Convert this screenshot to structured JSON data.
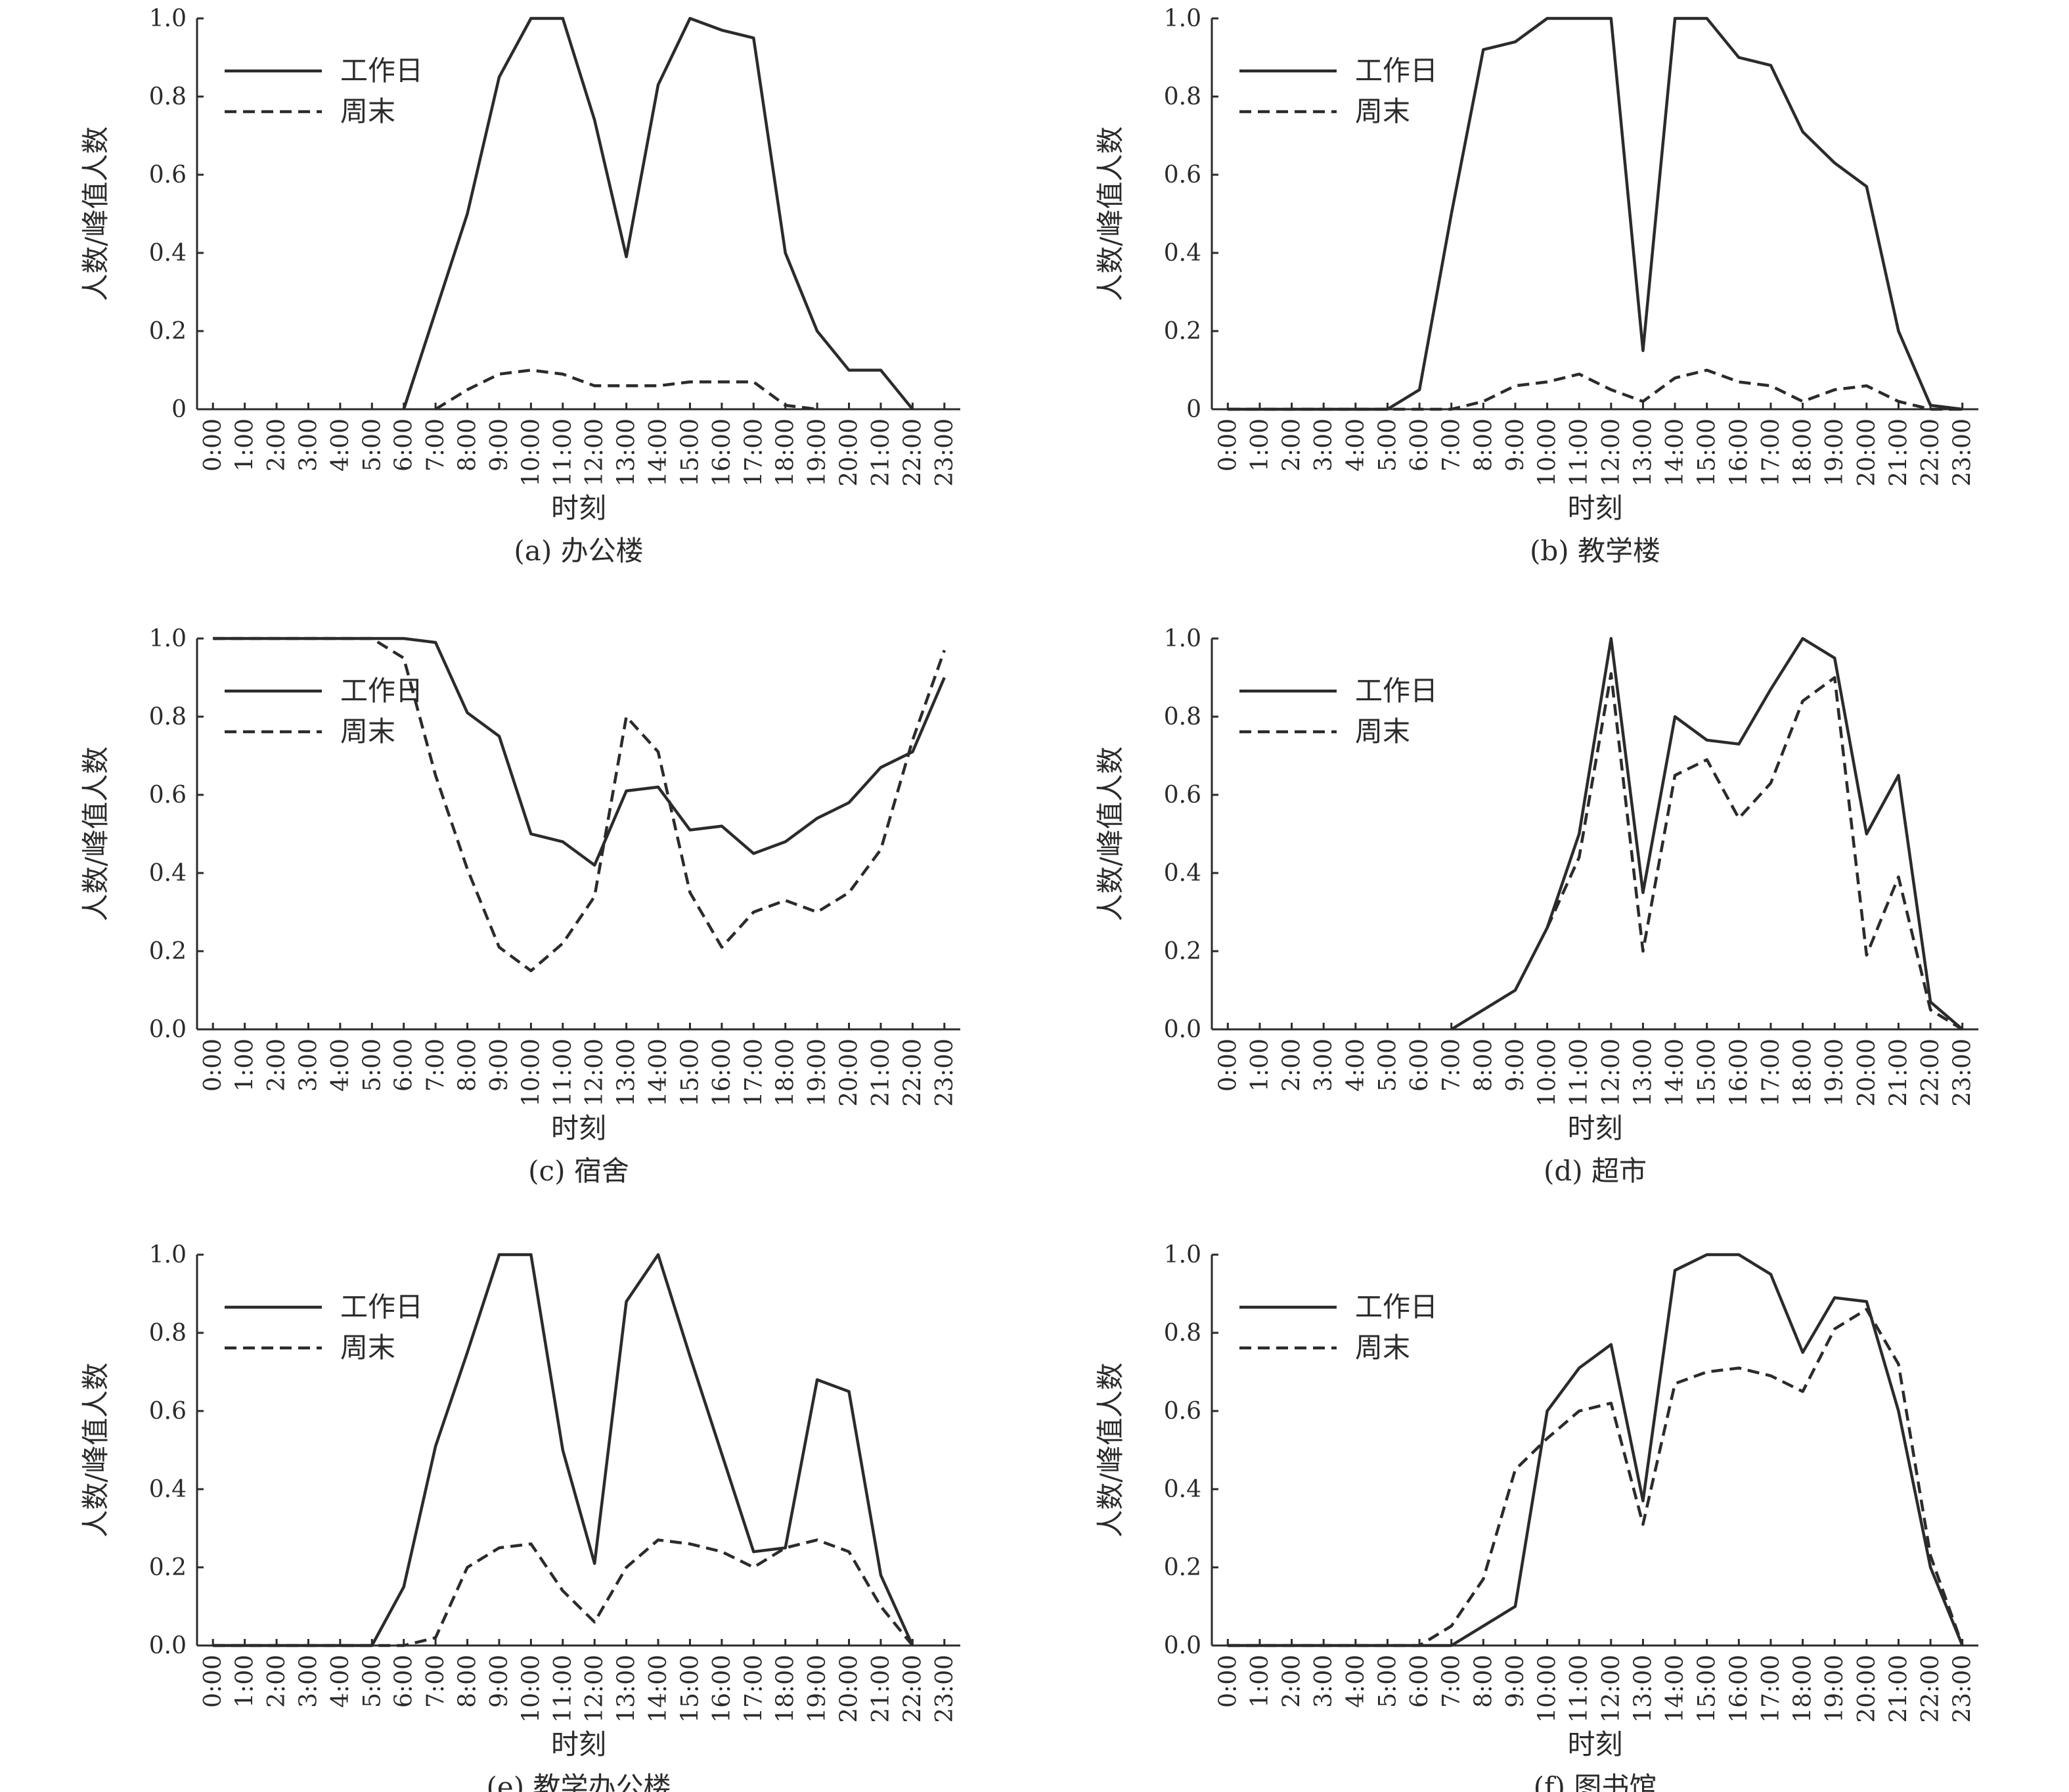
{
  "chart_data": [
    {
      "type": "line",
      "caption": "(a)  办公楼",
      "xlabel": "时刻",
      "ylabel": "人数/峰值人数",
      "ylim": [
        0,
        1.0
      ],
      "y_ticks": [
        "0",
        "0.2",
        "0.4",
        "0.6",
        "0.8",
        "1.0"
      ],
      "categories": [
        "0:00",
        "1:00",
        "2:00",
        "3:00",
        "4:00",
        "5:00",
        "6:00",
        "7:00",
        "8:00",
        "9:00",
        "10:00",
        "11:00",
        "12:00",
        "13:00",
        "14:00",
        "15:00",
        "16:00",
        "17:00",
        "18:00",
        "19:00",
        "20:00",
        "21:00",
        "22:00",
        "23:00"
      ],
      "legend_position": "top-left",
      "series": [
        {
          "name": "工作日",
          "style": "solid",
          "values": [
            null,
            null,
            null,
            null,
            null,
            null,
            0,
            0.25,
            0.5,
            0.85,
            1.0,
            1.0,
            0.74,
            0.39,
            0.83,
            1.0,
            0.97,
            0.95,
            0.4,
            0.2,
            0.1,
            0.1,
            0,
            null
          ]
        },
        {
          "name": "周末",
          "style": "dashed",
          "values": [
            null,
            null,
            null,
            null,
            null,
            null,
            null,
            0,
            0.05,
            0.09,
            0.1,
            0.09,
            0.06,
            0.06,
            0.06,
            0.07,
            0.07,
            0.07,
            0.01,
            0,
            null,
            null,
            null,
            null
          ]
        }
      ]
    },
    {
      "type": "line",
      "caption": "(b) 教学楼",
      "xlabel": "时刻",
      "ylabel": "人数/峰值人数",
      "ylim": [
        0,
        1.0
      ],
      "y_ticks": [
        "0",
        "0.2",
        "0.4",
        "0.6",
        "0.8",
        "1.0"
      ],
      "categories": [
        "0:00",
        "1:00",
        "2:00",
        "3:00",
        "4:00",
        "5:00",
        "6:00",
        "7:00",
        "8:00",
        "9:00",
        "10:00",
        "11:00",
        "12:00",
        "13:00",
        "14:00",
        "15:00",
        "16:00",
        "17:00",
        "18:00",
        "19:00",
        "20:00",
        "21:00",
        "22:00",
        "23:00"
      ],
      "legend_position": "top-left",
      "series": [
        {
          "name": "工作日",
          "style": "solid",
          "values": [
            0,
            0,
            0,
            0,
            0,
            0,
            0.05,
            0.5,
            0.92,
            0.94,
            1.0,
            1.0,
            1.0,
            0.15,
            1.0,
            1.0,
            0.9,
            0.88,
            0.71,
            0.63,
            0.57,
            0.2,
            0.01,
            0
          ]
        },
        {
          "name": "周末",
          "style": "dashed",
          "values": [
            0,
            0,
            0,
            0,
            0,
            0,
            0,
            0,
            0.02,
            0.06,
            0.07,
            0.09,
            0.05,
            0.02,
            0.08,
            0.1,
            0.07,
            0.06,
            0.02,
            0.05,
            0.06,
            0.02,
            0,
            0
          ]
        }
      ]
    },
    {
      "type": "line",
      "caption": "(c) 宿舍",
      "xlabel": "时刻",
      "ylabel": "人数/峰值人数",
      "ylim": [
        0,
        1.0
      ],
      "y_ticks": [
        "0.0",
        "0.2",
        "0.4",
        "0.6",
        "0.8",
        "1.0"
      ],
      "categories": [
        "0:00",
        "1:00",
        "2:00",
        "3:00",
        "4:00",
        "5:00",
        "6:00",
        "7:00",
        "8:00",
        "9:00",
        "10:00",
        "11:00",
        "12:00",
        "13:00",
        "14:00",
        "15:00",
        "16:00",
        "17:00",
        "18:00",
        "19:00",
        "20:00",
        "21:00",
        "22:00",
        "23:00"
      ],
      "legend_position": "top-left",
      "series": [
        {
          "name": "工作日",
          "style": "solid",
          "values": [
            1.0,
            1.0,
            1.0,
            1.0,
            1.0,
            1.0,
            1.0,
            0.99,
            0.81,
            0.75,
            0.5,
            0.48,
            0.42,
            0.61,
            0.62,
            0.51,
            0.52,
            0.45,
            0.48,
            0.54,
            0.58,
            0.67,
            0.71,
            0.9
          ]
        },
        {
          "name": "周末",
          "style": "dashed",
          "values": [
            1.0,
            1.0,
            1.0,
            1.0,
            1.0,
            1.0,
            0.95,
            0.65,
            0.41,
            0.21,
            0.15,
            0.22,
            0.34,
            0.8,
            0.71,
            0.35,
            0.21,
            0.3,
            0.33,
            0.3,
            0.35,
            0.46,
            0.74,
            0.97
          ]
        }
      ]
    },
    {
      "type": "line",
      "caption": "(d) 超市",
      "xlabel": "时刻",
      "ylabel": "人数/峰值人数",
      "ylim": [
        0,
        1.0
      ],
      "y_ticks": [
        "0.0",
        "0.2",
        "0.4",
        "0.6",
        "0.8",
        "1.0"
      ],
      "categories": [
        "0:00",
        "1:00",
        "2:00",
        "3:00",
        "4:00",
        "5:00",
        "6:00",
        "7:00",
        "8:00",
        "9:00",
        "10:00",
        "11:00",
        "12:00",
        "13:00",
        "14:00",
        "15:00",
        "16:00",
        "17:00",
        "18:00",
        "19:00",
        "20:00",
        "21:00",
        "22:00",
        "23:00"
      ],
      "legend_position": "top-left",
      "series": [
        {
          "name": "工作日",
          "style": "solid",
          "values": [
            null,
            null,
            null,
            null,
            null,
            null,
            null,
            0,
            0.05,
            0.1,
            0.26,
            0.5,
            1.0,
            0.35,
            0.8,
            0.74,
            0.73,
            0.87,
            1.0,
            0.95,
            0.5,
            0.65,
            0.07,
            0
          ]
        },
        {
          "name": "周末",
          "style": "dashed",
          "values": [
            null,
            null,
            null,
            null,
            null,
            null,
            null,
            null,
            null,
            null,
            0.26,
            0.44,
            0.91,
            0.2,
            0.65,
            0.69,
            0.54,
            0.63,
            0.84,
            0.9,
            0.19,
            0.39,
            0.05,
            0
          ]
        }
      ]
    },
    {
      "type": "line",
      "caption": "(e) 教学办公楼",
      "xlabel": "时刻",
      "ylabel": "人数/峰值人数",
      "ylim": [
        0,
        1.0
      ],
      "y_ticks": [
        "0.0",
        "0.2",
        "0.4",
        "0.6",
        "0.8",
        "1.0"
      ],
      "categories": [
        "0:00",
        "1:00",
        "2:00",
        "3:00",
        "4:00",
        "5:00",
        "6:00",
        "7:00",
        "8:00",
        "9:00",
        "10:00",
        "11:00",
        "12:00",
        "13:00",
        "14:00",
        "15:00",
        "16:00",
        "17:00",
        "18:00",
        "19:00",
        "20:00",
        "21:00",
        "22:00",
        "23:00"
      ],
      "legend_position": "top-left",
      "series": [
        {
          "name": "工作日",
          "style": "solid",
          "values": [
            0,
            0,
            0,
            0,
            0,
            0,
            0.15,
            0.51,
            0.75,
            1.0,
            1.0,
            0.5,
            0.21,
            0.88,
            1.0,
            0.74,
            0.49,
            0.24,
            0.25,
            0.68,
            0.65,
            0.18,
            0,
            null
          ]
        },
        {
          "name": "周末",
          "style": "dashed",
          "values": [
            0,
            0,
            0,
            0,
            0,
            0,
            0,
            0.02,
            0.2,
            0.25,
            0.26,
            0.14,
            0.06,
            0.2,
            0.27,
            0.26,
            0.24,
            0.2,
            0.25,
            0.27,
            0.24,
            0.1,
            0,
            null
          ]
        }
      ]
    },
    {
      "type": "line",
      "caption": "(f) 图书馆",
      "xlabel": "时刻",
      "ylabel": "人数/峰值人数",
      "ylim": [
        0,
        1.0
      ],
      "y_ticks": [
        "0.0",
        "0.2",
        "0.4",
        "0.6",
        "0.8",
        "1.0"
      ],
      "categories": [
        "0:00",
        "1:00",
        "2:00",
        "3:00",
        "4:00",
        "5:00",
        "6:00",
        "7:00",
        "8:00",
        "9:00",
        "10:00",
        "11:00",
        "12:00",
        "13:00",
        "14:00",
        "15:00",
        "16:00",
        "17:00",
        "18:00",
        "19:00",
        "20:00",
        "21:00",
        "22:00",
        "23:00"
      ],
      "legend_position": "top-left",
      "series": [
        {
          "name": "工作日",
          "style": "solid",
          "values": [
            0,
            0,
            0,
            0,
            0,
            0,
            0,
            0,
            0.05,
            0.1,
            0.6,
            0.71,
            0.77,
            0.37,
            0.96,
            1.0,
            1.0,
            0.95,
            0.75,
            0.89,
            0.88,
            0.6,
            0.2,
            0
          ]
        },
        {
          "name": "周末",
          "style": "dashed",
          "values": [
            0,
            0,
            0,
            0,
            0,
            0,
            0,
            0.05,
            0.17,
            0.45,
            0.53,
            0.6,
            0.62,
            0.31,
            0.67,
            0.7,
            0.71,
            0.69,
            0.65,
            0.81,
            0.86,
            0.72,
            0.23,
            0
          ]
        }
      ]
    }
  ]
}
